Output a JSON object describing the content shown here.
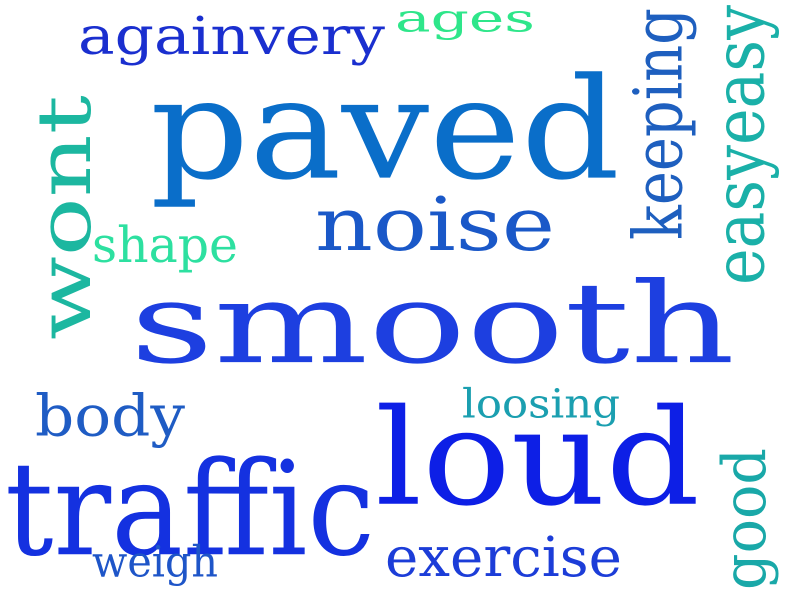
{
  "words": [
    {
      "id": "smooth",
      "text": "smooth",
      "color": "#1d3fe0",
      "orientation": "horizontal"
    },
    {
      "id": "paved",
      "text": "paved",
      "color": "#0a6ec9",
      "orientation": "horizontal"
    },
    {
      "id": "loud",
      "text": "loud",
      "color": "#0d1fe6",
      "orientation": "horizontal"
    },
    {
      "id": "traffic",
      "text": "traffic",
      "color": "#1431e0",
      "orientation": "horizontal"
    },
    {
      "id": "noise",
      "text": "noise",
      "color": "#1a58c8",
      "orientation": "horizontal"
    },
    {
      "id": "wont",
      "text": "wont",
      "color": "#1cb7a0",
      "orientation": "vertical"
    },
    {
      "id": "againvery",
      "text": "againvery",
      "color": "#1a2fcf",
      "orientation": "horizontal"
    },
    {
      "id": "easyeasy",
      "text": "easyeasy",
      "color": "#1ab0a8",
      "orientation": "vertical"
    },
    {
      "id": "keeping",
      "text": "keeping",
      "color": "#1e5fbf",
      "orientation": "vertical"
    },
    {
      "id": "exercise",
      "text": "exercise",
      "color": "#1c3dd8",
      "orientation": "horizontal"
    },
    {
      "id": "body",
      "text": "body",
      "color": "#1f5cc4",
      "orientation": "horizontal"
    },
    {
      "id": "good",
      "text": "good",
      "color": "#19a8a8",
      "orientation": "vertical"
    },
    {
      "id": "ages",
      "text": "ages",
      "color": "#2ee68a",
      "orientation": "horizontal"
    },
    {
      "id": "shape",
      "text": "shape",
      "color": "#2de0a0",
      "orientation": "horizontal"
    },
    {
      "id": "weigh",
      "text": "weigh",
      "color": "#1e55c8",
      "orientation": "horizontal"
    },
    {
      "id": "loosing",
      "text": "loosing",
      "color": "#1b9fb0",
      "orientation": "horizontal"
    }
  ]
}
